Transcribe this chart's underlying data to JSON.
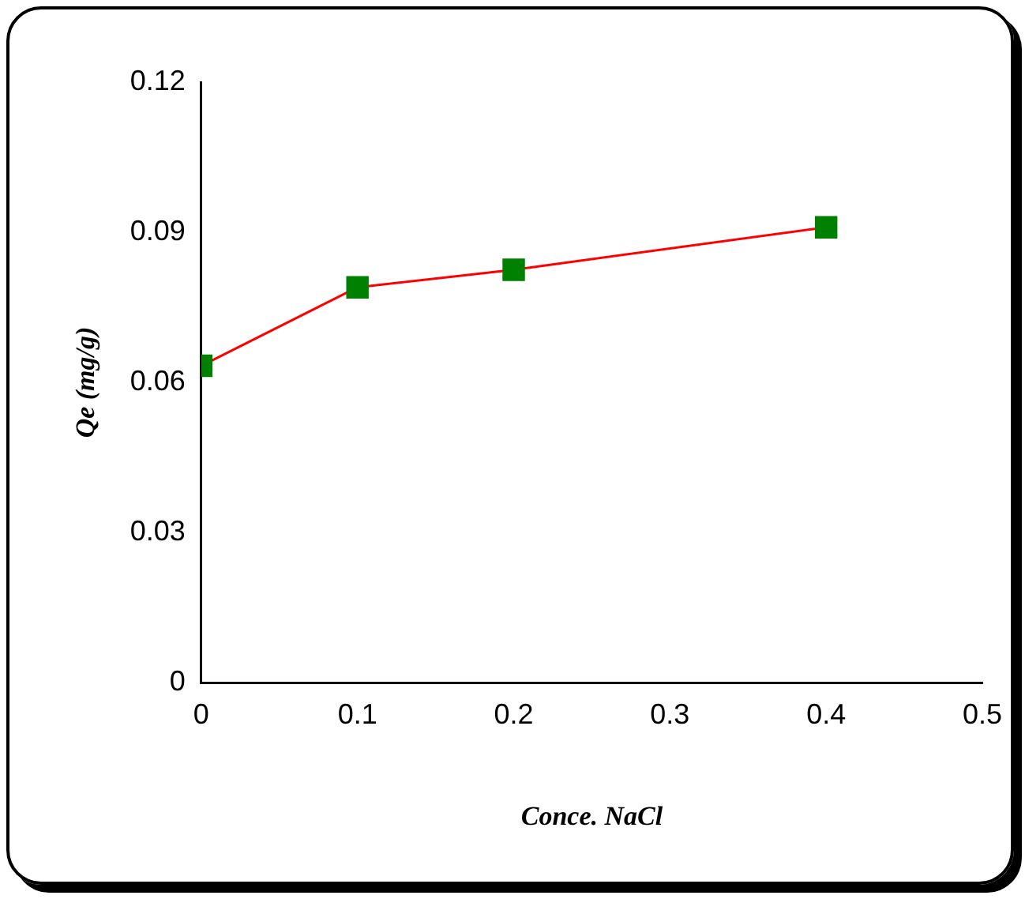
{
  "chart_data": {
    "type": "line",
    "xlabel": "Conce. NaCl",
    "ylabel": "Qe (mg/g)",
    "x": [
      0,
      0.1,
      0.2,
      0.4
    ],
    "series": [
      {
        "color": "#ff0000",
        "colors": [
          "#008000",
          "#008000",
          "#008000",
          "#008000"
        ],
        "values": [
          0.0633,
          0.079,
          0.0825,
          0.091
        ]
      }
    ],
    "marker": "square",
    "line_style": "solid",
    "grid": false,
    "legend": false,
    "xlim": [
      0,
      0.5
    ],
    "xticks": [
      0,
      0.1,
      0.2,
      0.3,
      0.4,
      0.5
    ],
    "ylim": [
      0,
      0.12
    ],
    "yticks": [
      0,
      0.03,
      0.06,
      0.09,
      0.12
    ]
  }
}
